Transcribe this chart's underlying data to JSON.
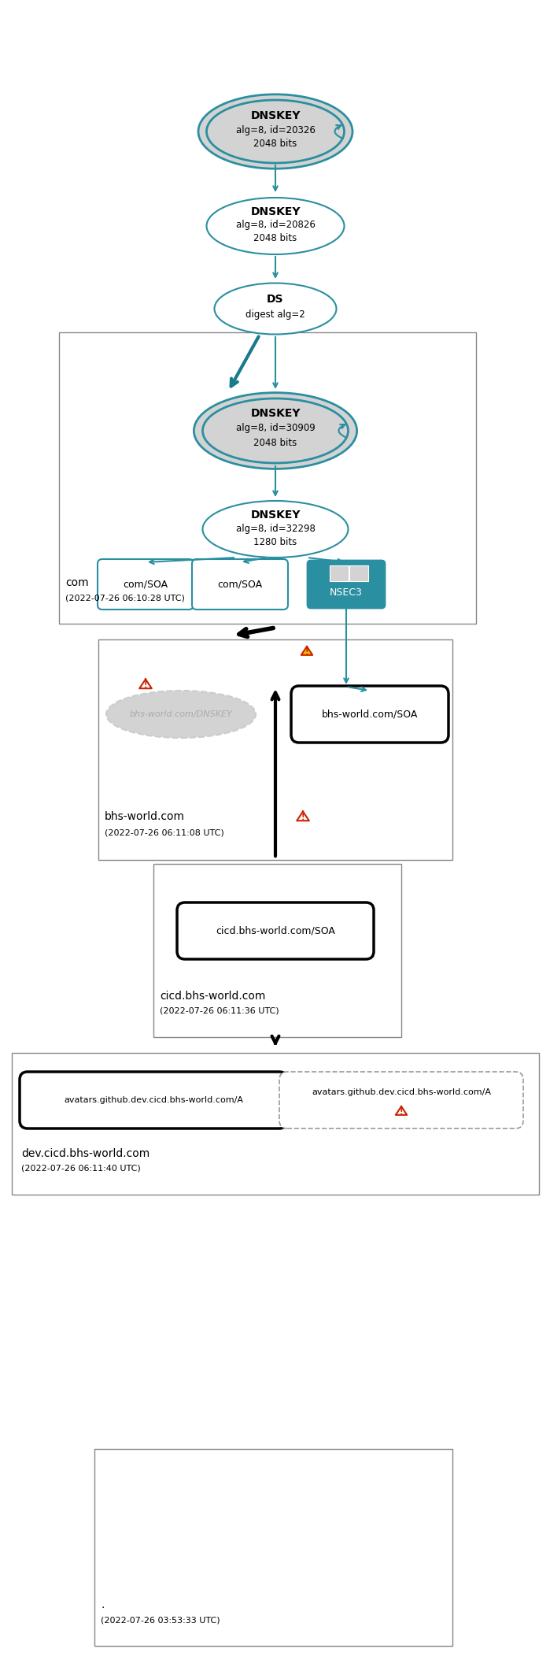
{
  "bg_color": "#ffffff",
  "teal": "#2a8fa0",
  "gray_fill": "#d3d3d3",
  "black": "#000000",
  "warning_red": "#cc2200",
  "warning_yellow": "#f0c000",
  "zone_root_label": ".",
  "zone_root_ts": "(2022-07-26 03:53:33 UTC)",
  "zone_com_label": "com",
  "zone_com_ts": "(2022-07-26 06:10:28 UTC)",
  "zone_bhs_label": "bhs-world.com",
  "zone_bhs_ts": "(2022-07-26 06:11:08 UTC)",
  "zone_cicd_label": "cicd.bhs-world.com",
  "zone_cicd_ts": "(2022-07-26 06:11:36 UTC)",
  "zone_dev_label": "dev.cicd.bhs-world.com",
  "zone_dev_ts": "(2022-07-26 06:11:40 UTC)",
  "dnskey1_line1": "DNSKEY",
  "dnskey1_line2": "alg=8, id=20326",
  "dnskey1_line3": "2048 bits",
  "dnskey2_line1": "DNSKEY",
  "dnskey2_line2": "alg=8, id=20826",
  "dnskey2_line3": "2048 bits",
  "ds_line1": "DS",
  "ds_line2": "digest alg=2",
  "dnskey_com1_line1": "DNSKEY",
  "dnskey_com1_line2": "alg=8, id=30909",
  "dnskey_com1_line3": "2048 bits",
  "dnskey_com2_line1": "DNSKEY",
  "dnskey_com2_line2": "alg=8, id=32298",
  "dnskey_com2_line3": "1280 bits",
  "com_soa_label": "com/SOA",
  "nsec3_label": "NSEC3",
  "bhs_dnskey_label": "bhs-world.com/DNSKEY",
  "bhs_soa_label": "bhs-world.com/SOA",
  "cicd_soa_label": "cicd.bhs-world.com/SOA",
  "dev_a_label": "avatars.github.dev.cicd.bhs-world.com/A"
}
